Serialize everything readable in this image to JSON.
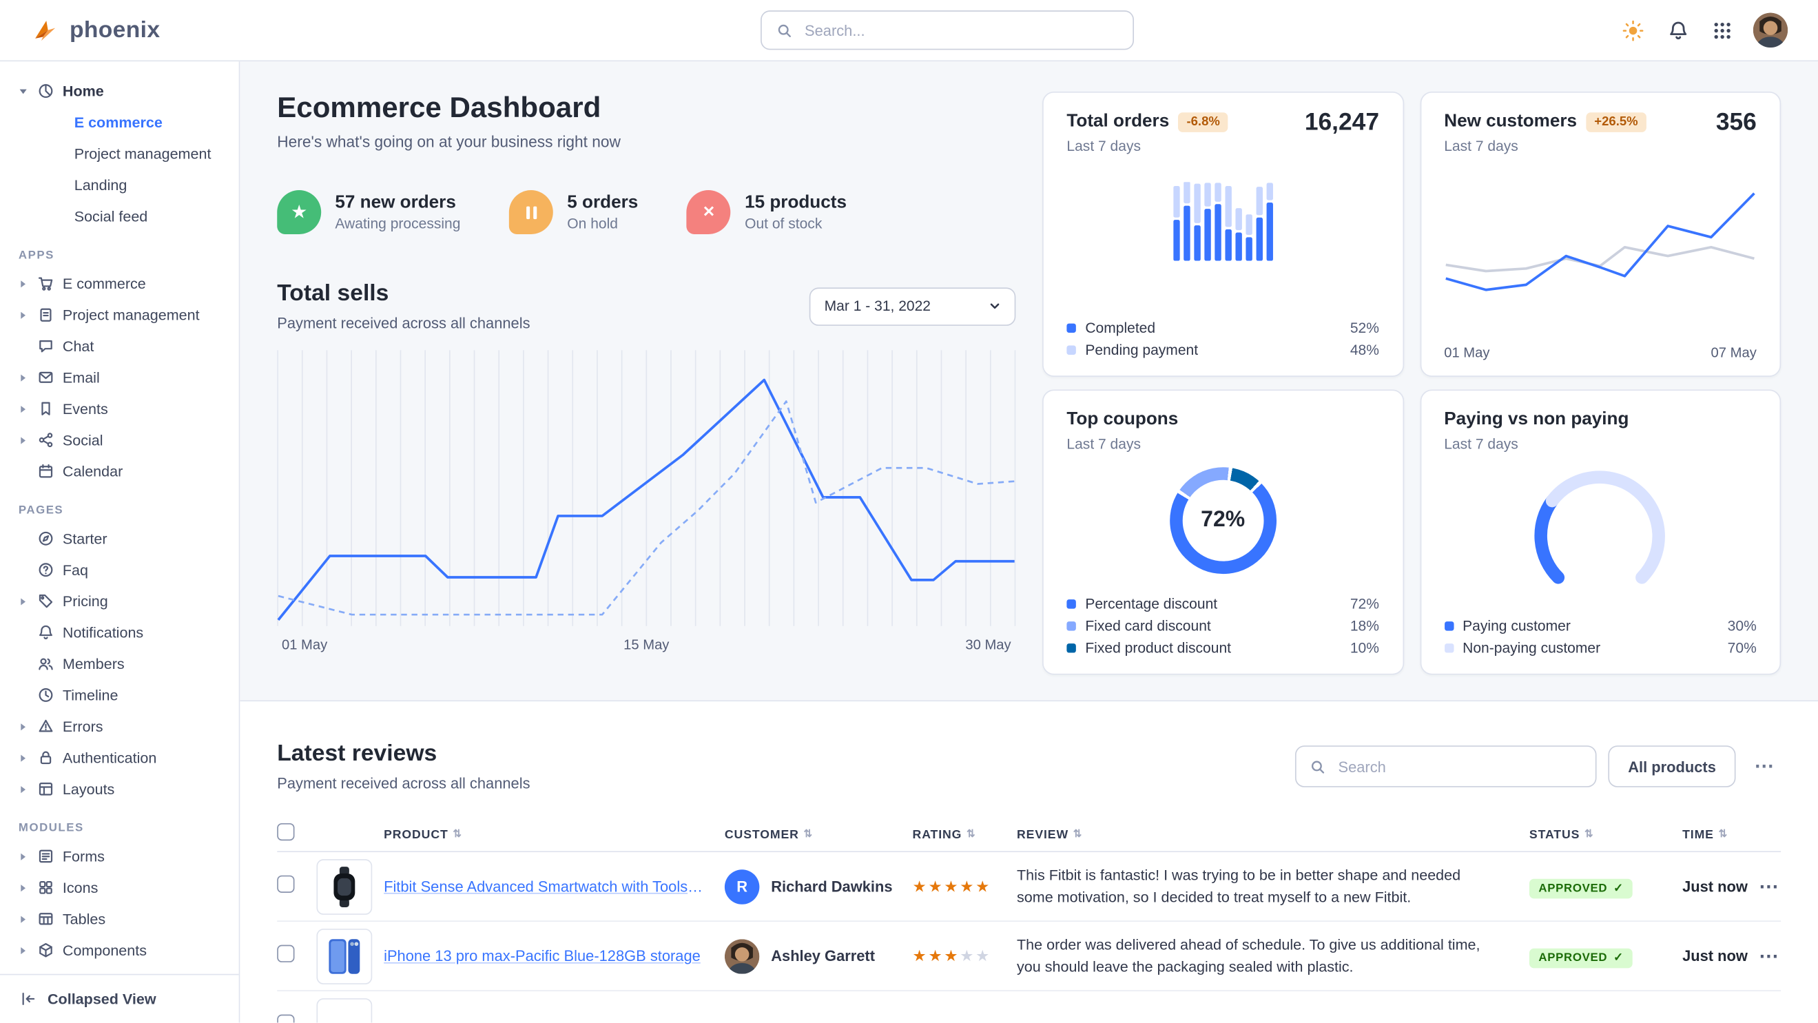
{
  "theme": {
    "primary": "#3874ff",
    "primary_pale": "#c7d6ff",
    "success_bg": "#d9fbd0",
    "success_text": "#1c6c09",
    "warning_bg": "#fbe7cd",
    "warning_text": "#b25a08",
    "text_dark": "#222834",
    "text_muted": "#6e7891",
    "border": "#cbd0dd",
    "section_bg": "#f5f7fa",
    "star": "#e5780b"
  },
  "header": {
    "logo_text": "phoenix",
    "search_placeholder": "Search..."
  },
  "sidebar": {
    "home": {
      "label": "Home",
      "icon": "pie",
      "children": [
        {
          "label": "E commerce",
          "active": true
        },
        {
          "label": "Project management"
        },
        {
          "label": "Landing"
        },
        {
          "label": "Social feed"
        }
      ]
    },
    "sections": [
      {
        "title": "APPS",
        "items": [
          {
            "label": "E commerce",
            "icon": "cart",
            "caret": true
          },
          {
            "label": "Project management",
            "icon": "clipboard",
            "caret": true
          },
          {
            "label": "Chat",
            "icon": "chat"
          },
          {
            "label": "Email",
            "icon": "mail",
            "caret": true
          },
          {
            "label": "Events",
            "icon": "bookmark",
            "caret": true
          },
          {
            "label": "Social",
            "icon": "share",
            "caret": true
          },
          {
            "label": "Calendar",
            "icon": "calendar"
          }
        ]
      },
      {
        "title": "PAGES",
        "items": [
          {
            "label": "Starter",
            "icon": "compass"
          },
          {
            "label": "Faq",
            "icon": "help"
          },
          {
            "label": "Pricing",
            "icon": "tag",
            "caret": true
          },
          {
            "label": "Notifications",
            "icon": "bell"
          },
          {
            "label": "Members",
            "icon": "users"
          },
          {
            "label": "Timeline",
            "icon": "clock"
          },
          {
            "label": "Errors",
            "icon": "warning",
            "caret": true
          },
          {
            "label": "Authentication",
            "icon": "lock",
            "caret": true
          },
          {
            "label": "Layouts",
            "icon": "layout",
            "caret": true
          }
        ]
      },
      {
        "title": "MODULES",
        "items": [
          {
            "label": "Forms",
            "icon": "form",
            "caret": true
          },
          {
            "label": "Icons",
            "icon": "grid",
            "caret": true
          },
          {
            "label": "Tables",
            "icon": "table",
            "caret": true
          },
          {
            "label": "Components",
            "icon": "cube",
            "caret": true
          }
        ]
      }
    ],
    "collapse_label": "Collapsed View"
  },
  "page": {
    "title": "Ecommerce Dashboard",
    "subtitle": "Here's what's going on at your business right now"
  },
  "stats": [
    {
      "value": "57 new orders",
      "caption": "Awating processing",
      "icon": "star",
      "color": "green"
    },
    {
      "value": "5 orders",
      "caption": "On hold",
      "icon": "pause",
      "color": "orange"
    },
    {
      "value": "15 products",
      "caption": "Out of stock",
      "icon": "x",
      "color": "red"
    }
  ],
  "total_sells": {
    "title": "Total sells",
    "subtitle": "Payment received across all channels",
    "date_range": "Mar 1 - 31, 2022"
  },
  "cards": {
    "total_orders": {
      "title": "Total orders",
      "badge": "-6.8%",
      "period": "Last 7 days",
      "value": "16,247",
      "legend": [
        {
          "label": "Completed",
          "value": "52%",
          "color": "#3874ff"
        },
        {
          "label": "Pending payment",
          "value": "48%",
          "color": "#c7d6ff"
        }
      ]
    },
    "new_customers": {
      "title": "New customers",
      "badge": "+26.5%",
      "period": "Last 7 days",
      "value": "356"
    },
    "top_coupons": {
      "title": "Top coupons",
      "period": "Last 7 days",
      "legend": [
        {
          "label": "Percentage discount",
          "value": "72%",
          "color": "#3874ff"
        },
        {
          "label": "Fixed card discount",
          "value": "18%",
          "color": "#85a9ff"
        },
        {
          "label": "Fixed product discount",
          "value": "10%",
          "color": "#0065a8"
        }
      ]
    },
    "paying": {
      "title": "Paying vs non paying",
      "period": "Last 7 days",
      "legend": [
        {
          "label": "Paying customer",
          "value": "30%",
          "color": "#3874ff"
        },
        {
          "label": "Non-paying customer",
          "value": "70%",
          "color": "#d9e2ff"
        }
      ]
    }
  },
  "chart_data": [
    {
      "id": "total-sells",
      "type": "line",
      "ylim": [
        0,
        100
      ],
      "grid": "vertical",
      "x_ticks": [
        "01 May",
        "15 May",
        "30 May"
      ],
      "series": [
        {
          "name": "current",
          "style": "solid",
          "color": "#3874ff",
          "points": [
            [
              0,
              1
            ],
            [
              7,
              25
            ],
            [
              20,
              25
            ],
            [
              23,
              17
            ],
            [
              35,
              17
            ],
            [
              38,
              40
            ],
            [
              44,
              40
            ],
            [
              55,
              63
            ],
            [
              66,
              91
            ],
            [
              74,
              47
            ],
            [
              79,
              47
            ],
            [
              86,
              16
            ],
            [
              89,
              16
            ],
            [
              92,
              23
            ],
            [
              100,
              23
            ]
          ]
        },
        {
          "name": "previous",
          "style": "dashed",
          "color": "#86abf7",
          "points": [
            [
              0,
              10
            ],
            [
              10,
              3
            ],
            [
              44,
              3
            ],
            [
              52,
              30
            ],
            [
              57,
              42
            ],
            [
              62,
              56
            ],
            [
              69,
              83
            ],
            [
              73,
              45
            ],
            [
              82,
              58
            ],
            [
              88,
              58
            ],
            [
              95,
              52
            ],
            [
              100,
              53
            ]
          ]
        }
      ]
    },
    {
      "id": "total-orders",
      "type": "bar",
      "stacked": true,
      "series": [
        {
          "name": "Completed",
          "color": "#3874ff"
        },
        {
          "name": "Pending payment",
          "color": "#c7d6ff"
        }
      ],
      "bars": [
        [
          52,
          40
        ],
        [
          70,
          28
        ],
        [
          45,
          50
        ],
        [
          66,
          30
        ],
        [
          72,
          24
        ],
        [
          40,
          52
        ],
        [
          36,
          28
        ],
        [
          30,
          26
        ],
        [
          55,
          36
        ],
        [
          74,
          22
        ]
      ]
    },
    {
      "id": "new-customers",
      "type": "line",
      "x_ticks": [
        "01 May",
        "07 May"
      ],
      "series": [
        {
          "name": "previous",
          "style": "solid",
          "color": "#cbd0dd",
          "points": [
            [
              0,
              33
            ],
            [
              13,
              28
            ],
            [
              26,
              30
            ],
            [
              39,
              38
            ],
            [
              50,
              32
            ],
            [
              58,
              47
            ],
            [
              72,
              40
            ],
            [
              86,
              47
            ],
            [
              100,
              38
            ]
          ]
        },
        {
          "name": "current",
          "style": "solid",
          "color": "#3874ff",
          "points": [
            [
              0,
              22
            ],
            [
              13,
              13
            ],
            [
              26,
              17
            ],
            [
              39,
              40
            ],
            [
              50,
              31
            ],
            [
              58,
              24
            ],
            [
              72,
              64
            ],
            [
              86,
              55
            ],
            [
              100,
              90
            ]
          ]
        }
      ]
    },
    {
      "id": "top-coupons",
      "type": "donut",
      "center_label": "72%",
      "values": [
        72,
        18,
        10
      ],
      "labels": [
        "Percentage discount",
        "Fixed card discount",
        "Fixed product discount"
      ],
      "colors": [
        "#3874ff",
        "#85a9ff",
        "#0065a8"
      ]
    },
    {
      "id": "paying-gauge",
      "type": "gauge",
      "values": [
        30,
        70
      ],
      "labels": [
        "Paying customer",
        "Non-paying customer"
      ],
      "colors": [
        "#3874ff",
        "#d9e2ff"
      ]
    }
  ],
  "reviews": {
    "title": "Latest reviews",
    "subtitle": "Payment received across all channels",
    "search_placeholder": "Search",
    "filter_button": "All products",
    "more_button": "⋯",
    "columns": [
      "PRODUCT",
      "CUSTOMER",
      "RATING",
      "REVIEW",
      "STATUS",
      "TIME"
    ],
    "rows": [
      {
        "product": "Fitbit Sense Advanced Smartwatch with Tools fo...",
        "product_image": "smartwatch",
        "customer": "Richard Dawkins",
        "avatar_type": "initial",
        "avatar_text": "R",
        "rating": 5,
        "review": "This Fitbit is fantastic! I was trying to be in better shape and needed some motivation, so I decided to treat myself to a new Fitbit.",
        "status": "APPROVED",
        "time": "Just now"
      },
      {
        "product": "iPhone 13 pro max-Pacific Blue-128GB storage",
        "product_image": "phone",
        "customer": "Ashley Garrett",
        "avatar_type": "photo",
        "rating": 3,
        "review": "The order was delivered ahead of schedule. To give us additional time, you should leave the packaging sealed with plastic.",
        "status": "APPROVED",
        "time": "Just now"
      },
      {
        "partial": true,
        "product_image": "blank"
      }
    ]
  }
}
